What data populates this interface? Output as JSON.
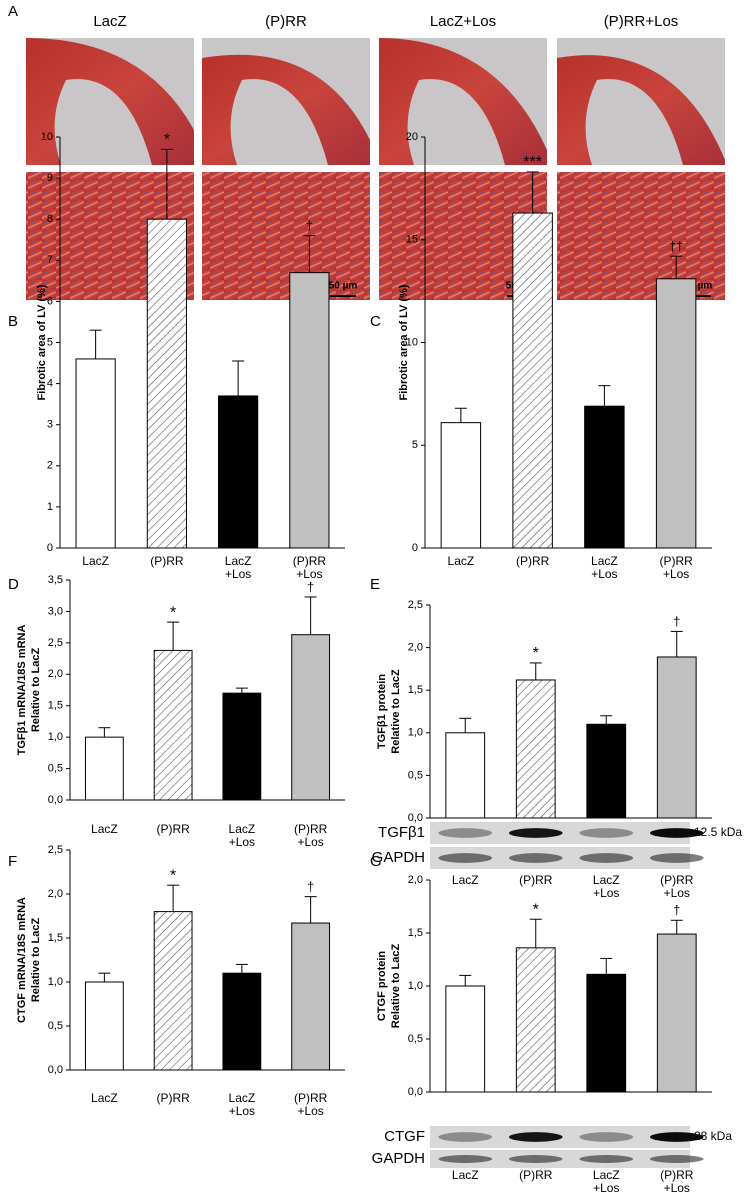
{
  "histology": {
    "letter": "A",
    "columns": [
      "LacZ",
      "(P)RR",
      "LacZ+Los",
      "(P)RR+Los"
    ],
    "scale_bar": "50 µm"
  },
  "chart_data": [
    {
      "letter": "B",
      "type": "bar",
      "ylabel": [
        "Fibrotic area of LV (%)"
      ],
      "categories": [
        "LacZ",
        "(P)RR",
        "LacZ\n+Los",
        "(P)RR\n+Los"
      ],
      "values": [
        4.6,
        8.0,
        3.7,
        6.7
      ],
      "errors": [
        0.7,
        1.7,
        0.85,
        0.9
      ],
      "colors": [
        "#ffffff",
        "#ffffff",
        "#000000",
        "#c0c0c0"
      ],
      "hatched": [
        false,
        true,
        false,
        false
      ],
      "annotations": [
        {
          "category": "(P)RR",
          "text": "*"
        },
        {
          "category": "(P)RR\n+Los",
          "text": "†"
        }
      ],
      "ylim": [
        0,
        10
      ],
      "yticks": [
        0,
        1,
        2,
        3,
        4,
        5,
        6,
        7,
        8,
        9,
        10
      ]
    },
    {
      "letter": "C",
      "type": "bar",
      "ylabel": [
        "Fibrotic area of LV (%)"
      ],
      "categories": [
        "LacZ",
        "(P)RR",
        "LacZ\n+Los",
        "(P)RR\n+Los"
      ],
      "values": [
        6.1,
        16.3,
        6.9,
        13.1
      ],
      "errors": [
        0.7,
        2.0,
        1.0,
        1.1
      ],
      "colors": [
        "#ffffff",
        "#ffffff",
        "#000000",
        "#c0c0c0"
      ],
      "hatched": [
        false,
        true,
        false,
        false
      ],
      "annotations": [
        {
          "category": "(P)RR",
          "text": "***"
        },
        {
          "category": "(P)RR\n+Los",
          "text": "††"
        }
      ],
      "ylim": [
        0,
        20
      ],
      "yticks": [
        0,
        5,
        10,
        15,
        20
      ]
    },
    {
      "letter": "D",
      "type": "bar",
      "ylabel": [
        "TGFβ1 mRNA/18S mRNA",
        "Relative to LacZ"
      ],
      "categories": [
        "LacZ",
        "(P)RR",
        "LacZ\n+Los",
        "(P)RR\n+Los"
      ],
      "values": [
        1.0,
        2.38,
        1.7,
        2.63
      ],
      "errors": [
        0.15,
        0.45,
        0.08,
        0.6
      ],
      "colors": [
        "#ffffff",
        "#ffffff",
        "#000000",
        "#c0c0c0"
      ],
      "hatched": [
        false,
        true,
        false,
        false
      ],
      "annotations": [
        {
          "category": "(P)RR",
          "text": "*"
        },
        {
          "category": "(P)RR\n+Los",
          "text": "†"
        }
      ],
      "ylim": [
        0,
        3.5
      ],
      "yticks": [
        {
          "value": 0,
          "label": "0,0"
        },
        {
          "value": 0.5,
          "label": "0,5"
        },
        {
          "value": 1,
          "label": "1,0"
        },
        {
          "value": 1.5,
          "label": "1,5"
        },
        {
          "value": 2,
          "label": "2,0"
        },
        {
          "value": 2.5,
          "label": "2,5"
        },
        {
          "value": 3,
          "label": "3,0"
        },
        {
          "value": 3.5,
          "label": "3,5"
        }
      ]
    },
    {
      "letter": "E",
      "type": "bar",
      "ylabel": [
        "TGFβ1 protein",
        "Relative to LacZ"
      ],
      "categories": [
        "LacZ",
        "(P)RR",
        "LacZ\n+Los",
        "(P)RR\n+Los"
      ],
      "values": [
        1.0,
        1.62,
        1.1,
        1.89
      ],
      "errors": [
        0.17,
        0.2,
        0.1,
        0.3
      ],
      "colors": [
        "#ffffff",
        "#ffffff",
        "#000000",
        "#c0c0c0"
      ],
      "hatched": [
        false,
        true,
        false,
        false
      ],
      "annotations": [
        {
          "category": "(P)RR",
          "text": "*"
        },
        {
          "category": "(P)RR\n+Los",
          "text": "†"
        }
      ],
      "ylim": [
        0,
        2.5
      ],
      "yticks": [
        {
          "value": 0,
          "label": "0,0"
        },
        {
          "value": 0.5,
          "label": "0,5"
        },
        {
          "value": 1,
          "label": "1,0"
        },
        {
          "value": 1.5,
          "label": "1,5"
        },
        {
          "value": 2,
          "label": "2,0"
        },
        {
          "value": 2.5,
          "label": "2,5"
        }
      ],
      "blot": {
        "rows": [
          "TGFβ1",
          "GAPDH"
        ],
        "size": "12.5 kDa"
      }
    },
    {
      "letter": "F",
      "type": "bar",
      "ylabel": [
        "CTGF mRNA/18S mRNA",
        "Relative to LacZ"
      ],
      "categories": [
        "LacZ",
        "(P)RR",
        "LacZ\n+Los",
        "(P)RR\n+Los"
      ],
      "values": [
        1.0,
        1.8,
        1.1,
        1.67
      ],
      "errors": [
        0.1,
        0.3,
        0.1,
        0.3
      ],
      "colors": [
        "#ffffff",
        "#ffffff",
        "#000000",
        "#c0c0c0"
      ],
      "hatched": [
        false,
        true,
        false,
        false
      ],
      "annotations": [
        {
          "category": "(P)RR",
          "text": "*"
        },
        {
          "category": "(P)RR\n+Los",
          "text": "†"
        }
      ],
      "ylim": [
        0,
        2.5
      ],
      "yticks": [
        {
          "value": 0,
          "label": "0,0"
        },
        {
          "value": 0.5,
          "label": "0,5"
        },
        {
          "value": 1,
          "label": "1,0"
        },
        {
          "value": 1.5,
          "label": "1,5"
        },
        {
          "value": 2,
          "label": "2,0"
        },
        {
          "value": 2.5,
          "label": "2,5"
        }
      ]
    },
    {
      "letter": "G",
      "type": "bar",
      "ylabel": [
        "CTGF protein",
        "Relative to LacZ"
      ],
      "categories": [
        "LacZ",
        "(P)RR",
        "LacZ\n+Los",
        "(P)RR\n+Los"
      ],
      "values": [
        1.0,
        1.36,
        1.11,
        1.49
      ],
      "errors": [
        0.1,
        0.27,
        0.15,
        0.13
      ],
      "colors": [
        "#ffffff",
        "#ffffff",
        "#000000",
        "#c0c0c0"
      ],
      "hatched": [
        false,
        true,
        false,
        false
      ],
      "annotations": [
        {
          "category": "(P)RR",
          "text": "*"
        },
        {
          "category": "(P)RR\n+Los",
          "text": "†"
        }
      ],
      "ylim": [
        0,
        2.0
      ],
      "yticks": [
        {
          "value": 0,
          "label": "0,0"
        },
        {
          "value": 0.5,
          "label": "0,5"
        },
        {
          "value": 1,
          "label": "1,0"
        },
        {
          "value": 1.5,
          "label": "1,5"
        },
        {
          "value": 2,
          "label": "2,0"
        }
      ],
      "blot": {
        "rows": [
          "CTGF",
          "GAPDH"
        ],
        "size": "28 kDa"
      }
    }
  ]
}
